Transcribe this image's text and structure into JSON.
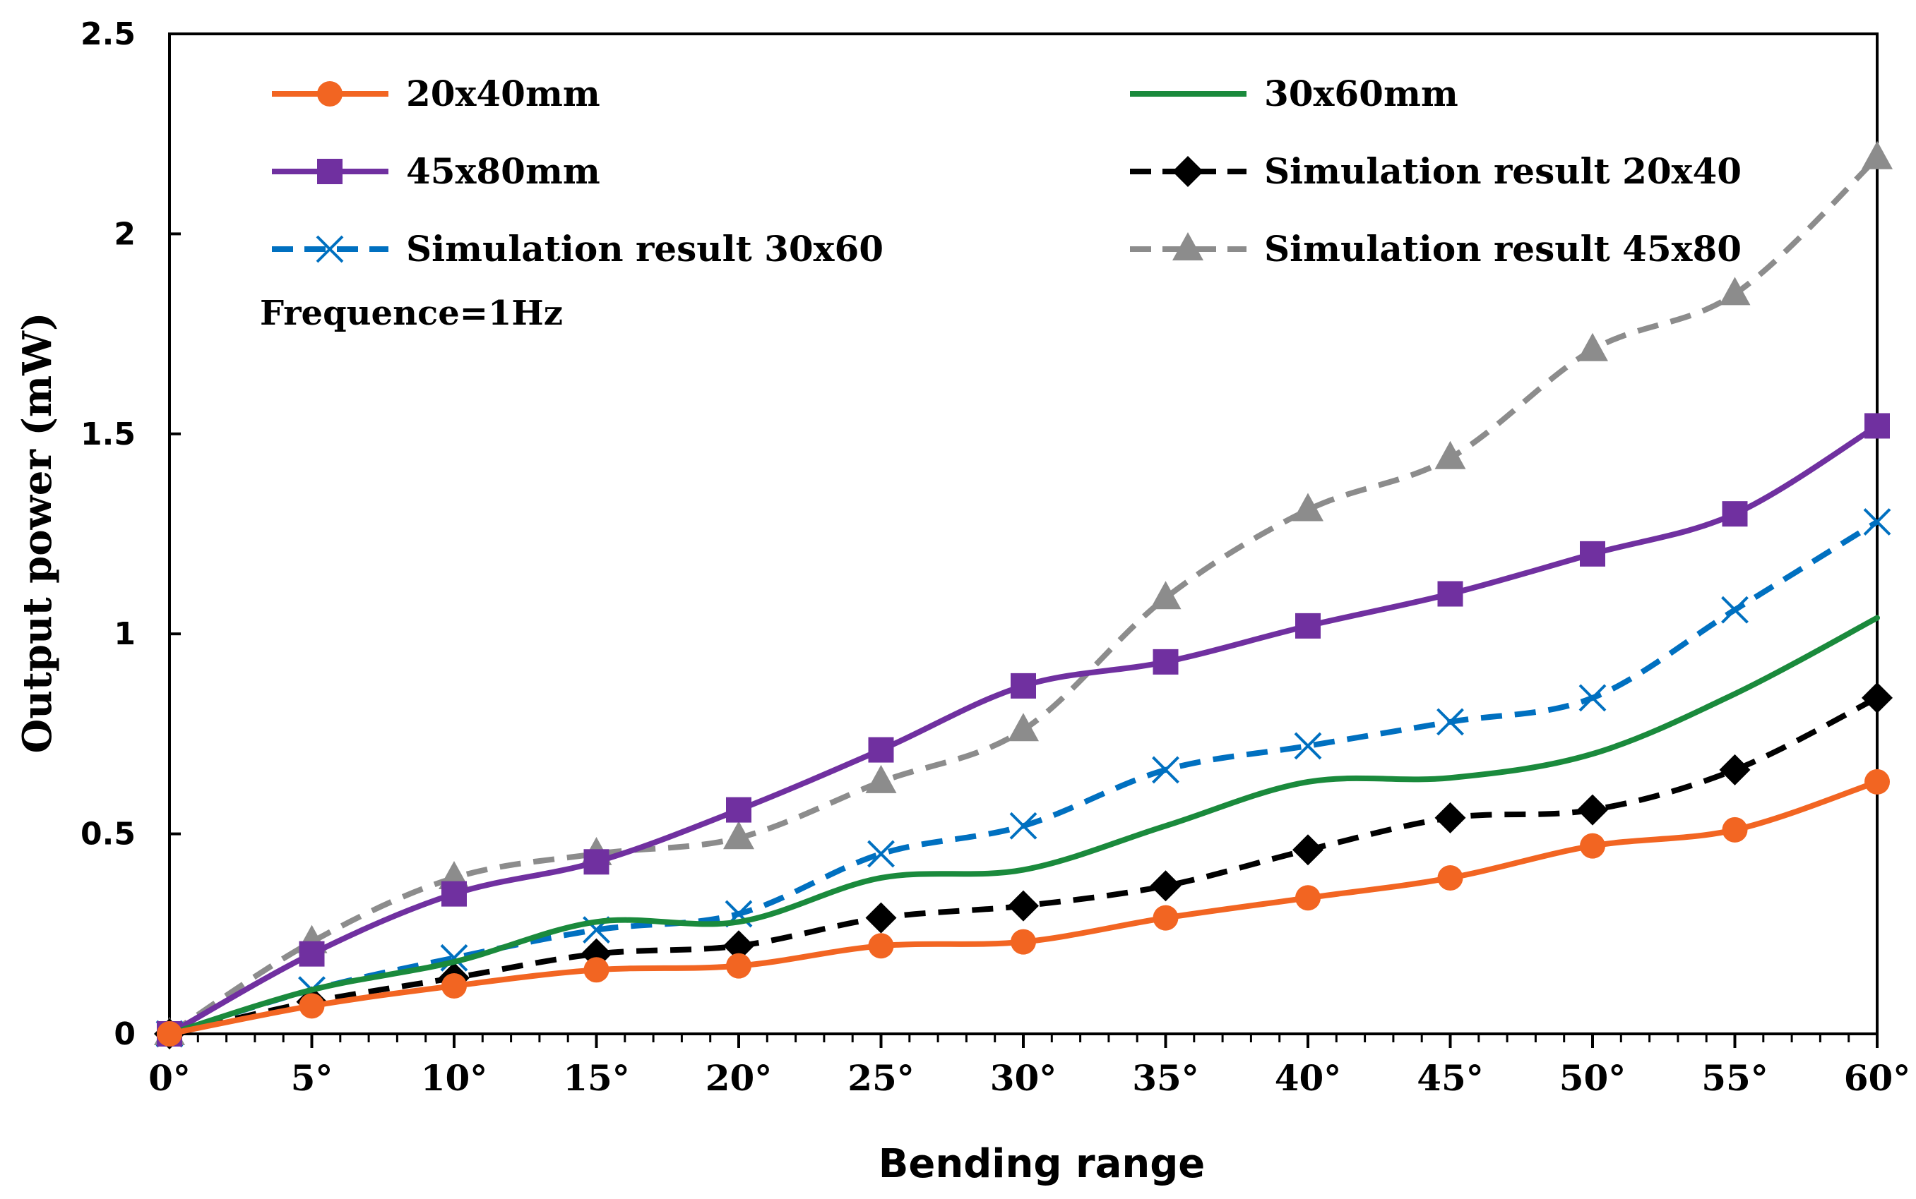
{
  "chart_data": {
    "type": "line",
    "title": "",
    "xlabel": "Bending range",
    "ylabel": "Output  power  (mW)",
    "annotation": "Frequence=1Hz",
    "categories": [
      "0°",
      "5°",
      "10°",
      "15°",
      "20°",
      "25°",
      "30°",
      "35°",
      "40°",
      "45°",
      "50°",
      "55°",
      "60°"
    ],
    "ylim": [
      0,
      2.5
    ],
    "yticks": [
      "0",
      "0.5",
      "1",
      "1.5",
      "2",
      "2.5"
    ],
    "ytick_values": [
      0,
      0.5,
      1,
      1.5,
      2,
      2.5
    ],
    "legend_position": "top",
    "series": [
      {
        "name": "20x40mm",
        "color": "#f26522",
        "dash": "solid",
        "marker": "circle",
        "values": [
          0,
          0.07,
          0.12,
          0.16,
          0.17,
          0.22,
          0.23,
          0.29,
          0.34,
          0.39,
          0.47,
          0.51,
          0.63
        ]
      },
      {
        "name": "30x60mm",
        "color": "#1a8a3c",
        "dash": "solid",
        "marker": "none",
        "values": [
          0,
          0.11,
          0.18,
          0.28,
          0.28,
          0.39,
          0.41,
          0.52,
          0.63,
          0.64,
          0.7,
          0.85,
          1.04
        ]
      },
      {
        "name": "45x80mm",
        "color": "#7030a0",
        "dash": "solid",
        "marker": "square",
        "values": [
          0,
          0.2,
          0.35,
          0.43,
          0.56,
          0.71,
          0.87,
          0.93,
          1.02,
          1.1,
          1.2,
          1.3,
          1.52
        ]
      },
      {
        "name": "Simulation result 20x40",
        "color": "#000000",
        "dash": "dashed",
        "marker": "diamond",
        "values": [
          0,
          0.08,
          0.14,
          0.2,
          0.22,
          0.29,
          0.32,
          0.37,
          0.46,
          0.54,
          0.56,
          0.66,
          0.84
        ]
      },
      {
        "name": "Simulation result 30x60",
        "color": "#0070c0",
        "dash": "dashed",
        "marker": "x",
        "values": [
          0,
          0.11,
          0.19,
          0.26,
          0.3,
          0.45,
          0.52,
          0.66,
          0.72,
          0.78,
          0.84,
          1.06,
          1.28
        ]
      },
      {
        "name": "Simulation result 45x80",
        "color": "#8c8c8c",
        "dash": "dashed",
        "marker": "triangle",
        "values": [
          0,
          0.23,
          0.39,
          0.45,
          0.49,
          0.63,
          0.76,
          1.09,
          1.31,
          1.44,
          1.71,
          1.85,
          2.19
        ]
      }
    ]
  }
}
